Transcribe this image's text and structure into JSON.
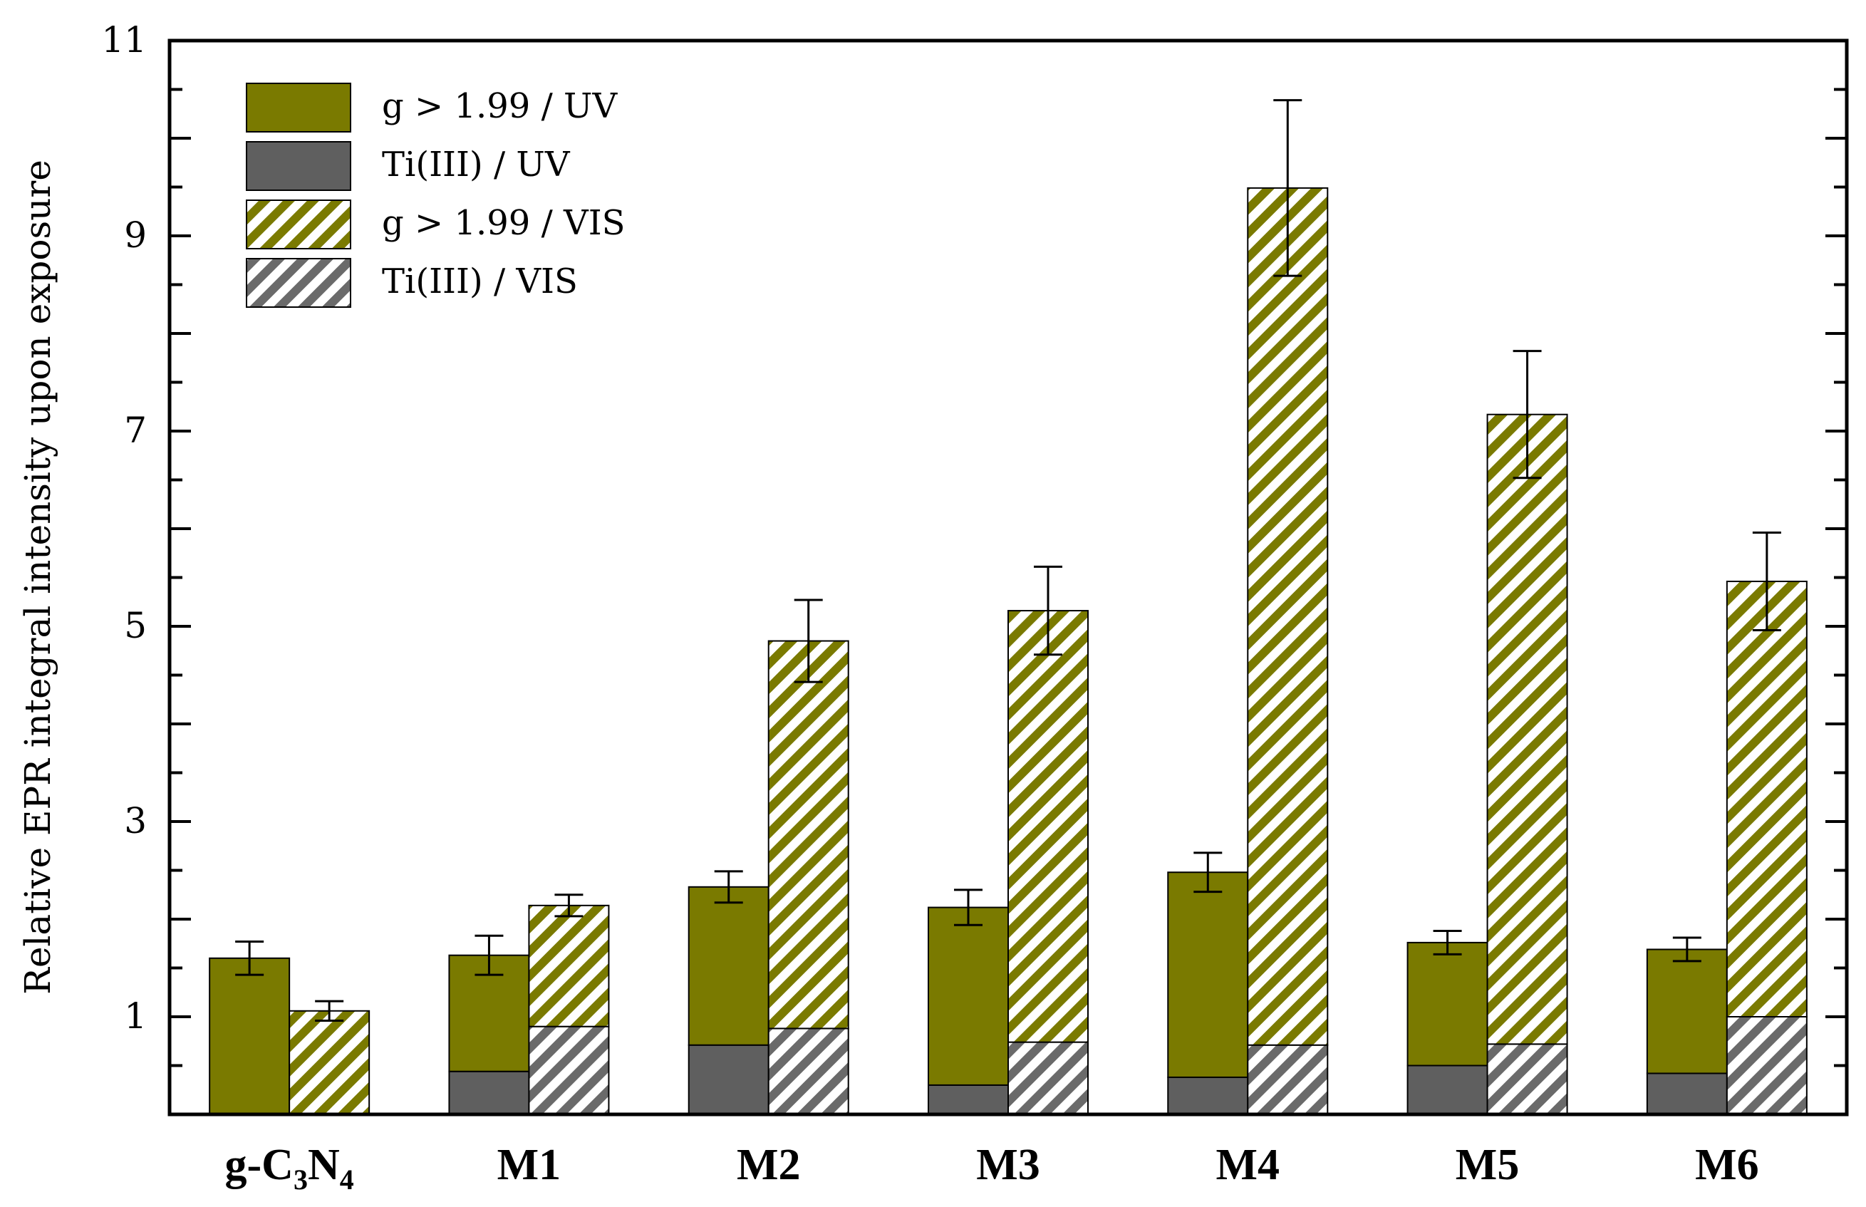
{
  "chart_data": {
    "type": "bar",
    "title": "",
    "xlabel": "",
    "ylabel": "Relative EPR integral intensity upon exposure",
    "ylim": [
      0,
      11
    ],
    "yticks": [
      1,
      3,
      5,
      7,
      9,
      11
    ],
    "grid": false,
    "legend_position": "top-left",
    "categories": [
      {
        "base": "g-C",
        "sub1": "3",
        "mid": "N",
        "sub2": "4"
      },
      {
        "base": "M1"
      },
      {
        "base": "M2"
      },
      {
        "base": "M3"
      },
      {
        "base": "M4"
      },
      {
        "base": "M5"
      },
      {
        "base": "M6"
      }
    ],
    "category_names": [
      "g-C3N4",
      "M1",
      "M2",
      "M3",
      "M4",
      "M5",
      "M6"
    ],
    "series": [
      {
        "name": "g > 1.99 / UV",
        "bar": "UV",
        "stack": "top",
        "fill": "solid",
        "color": "#7a7a00",
        "values": [
          1.6,
          1.19,
          1.62,
          1.82,
          2.1,
          1.26,
          1.27
        ]
      },
      {
        "name": "Ti(III) / UV",
        "bar": "UV",
        "stack": "bottom",
        "fill": "solid",
        "color": "#5f5f5f",
        "values": [
          0,
          0.44,
          0.71,
          0.3,
          0.38,
          0.5,
          0.42
        ]
      },
      {
        "name": "g > 1.99 / VIS",
        "bar": "VIS",
        "stack": "top",
        "fill": "hatched",
        "color": "#7a7a00",
        "values": [
          1.06,
          1.24,
          3.97,
          4.42,
          8.78,
          6.45,
          4.46
        ]
      },
      {
        "name": "Ti(III) / VIS",
        "bar": "VIS",
        "stack": "bottom",
        "fill": "hatched",
        "color": "#6a6a6a",
        "values": [
          0,
          0.9,
          0.88,
          0.74,
          0.71,
          0.72,
          1.0
        ]
      }
    ],
    "error_bars": {
      "UV": [
        0.17,
        0.2,
        0.16,
        0.18,
        0.2,
        0.12,
        0.12
      ],
      "VIS": [
        0.1,
        0.11,
        0.42,
        0.45,
        0.9,
        0.65,
        0.5
      ]
    }
  }
}
